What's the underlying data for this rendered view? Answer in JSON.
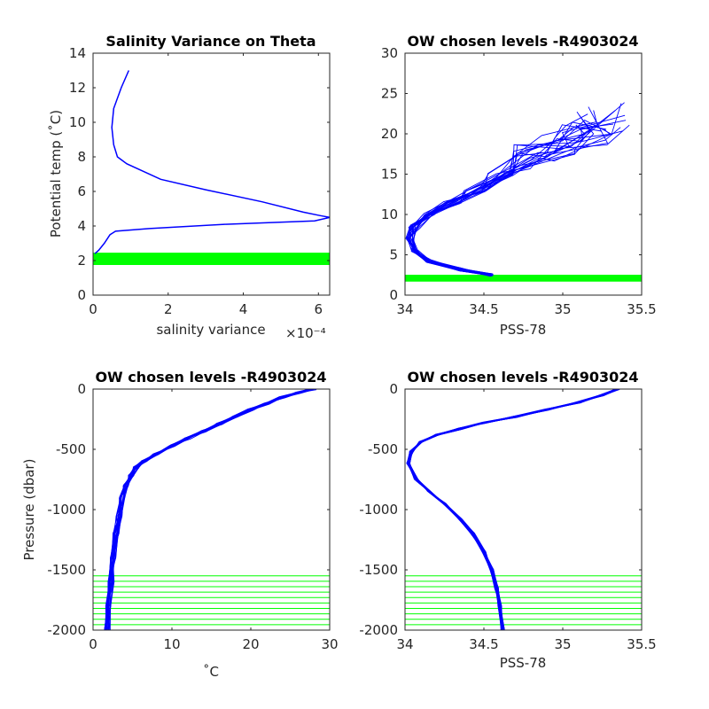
{
  "figure": {
    "panels": [
      {
        "title": "Salinity Variance on Theta",
        "xlabel": "salinity variance",
        "xexponent": "×10⁻⁴",
        "ylabel": "Potential temp (˚C)",
        "xlim": [
          0,
          6.3
        ],
        "ylim": [
          0,
          14
        ],
        "xticks": [
          0,
          2,
          4,
          6
        ],
        "yticks": [
          0,
          2,
          4,
          6,
          8,
          10,
          12,
          14
        ]
      },
      {
        "title": "OW chosen levels -R4903024",
        "xlabel": "PSS-78",
        "ylabel": "",
        "xlim": [
          34,
          35.5
        ],
        "ylim": [
          0,
          30
        ],
        "xticks": [
          34,
          34.5,
          35,
          35.5
        ],
        "yticks": [
          0,
          5,
          10,
          15,
          20,
          25,
          30
        ]
      },
      {
        "title": "OW chosen levels -R4903024",
        "xlabel": "˚C",
        "ylabel": "Pressure (dbar)",
        "xlim": [
          0,
          30
        ],
        "ylim": [
          -2000,
          0
        ],
        "xticks": [
          0,
          10,
          20,
          30
        ],
        "yticks": [
          -2000,
          -1500,
          -1000,
          -500,
          0
        ]
      },
      {
        "title": "OW chosen levels -R4903024",
        "xlabel": "PSS-78",
        "ylabel": "",
        "xlim": [
          34,
          35.5
        ],
        "ylim": [
          -2000,
          0
        ],
        "xticks": [
          34,
          34.5,
          35,
          35.5
        ],
        "yticks": [
          -2000,
          -1500,
          -1000,
          -500,
          0
        ]
      }
    ]
  },
  "chart_data": [
    {
      "type": "line",
      "title": "Salinity Variance on Theta",
      "xlabel": "salinity variance (×10⁻⁴)",
      "ylabel": "Potential temp (˚C)",
      "xlim": [
        0,
        6.3
      ],
      "ylim": [
        0,
        14
      ],
      "series": [
        {
          "color": "#0000ff",
          "x": [
            0.95,
            0.75,
            0.55,
            0.5,
            0.55,
            0.65,
            0.9,
            1.8,
            3.0,
            4.5,
            5.6,
            6.05,
            6.3,
            5.9,
            3.5,
            1.5,
            0.6,
            0.45,
            0.3,
            0.15,
            0.05
          ],
          "y": [
            13.0,
            12.0,
            10.8,
            9.7,
            8.7,
            8.0,
            7.6,
            6.7,
            6.1,
            5.4,
            4.8,
            4.6,
            4.5,
            4.3,
            4.1,
            3.85,
            3.7,
            3.5,
            3.0,
            2.6,
            2.4
          ]
        }
      ],
      "horizontal_levels": {
        "color": "#00ff00",
        "y": [
          1.8,
          1.9,
          2.0,
          2.05,
          2.1,
          2.2,
          2.3,
          2.35,
          2.4
        ]
      }
    },
    {
      "type": "line",
      "title": "OW chosen levels -R4903024",
      "xlabel": "PSS-78",
      "xlim": [
        34,
        35.5
      ],
      "ylim": [
        0,
        30
      ],
      "series": [
        {
          "color": "#0000ff",
          "x": [
            34.55,
            34.35,
            34.15,
            34.06,
            34.03,
            34.06,
            34.15,
            34.3,
            34.45,
            34.6,
            34.8,
            35.0,
            35.15,
            35.25
          ],
          "y": [
            2.5,
            3.2,
            4.2,
            5.5,
            7.0,
            8.5,
            10.0,
            11.5,
            13.0,
            15.0,
            17.0,
            18.5,
            20.0,
            22.0
          ]
        }
      ],
      "horizontal_levels": {
        "color": "#00ff00",
        "y": [
          1.8,
          1.9,
          2.0,
          2.1,
          2.2,
          2.3,
          2.4
        ]
      }
    },
    {
      "type": "line",
      "title": "OW chosen levels -R4903024",
      "xlabel": "˚C",
      "ylabel": "Pressure (dbar)",
      "xlim": [
        0,
        30
      ],
      "ylim": [
        -2000,
        0
      ],
      "series": [
        {
          "color": "#0000ff",
          "x": [
            1.8,
            2.0,
            2.3,
            2.6,
            2.9,
            3.3,
            3.7,
            4.2,
            4.8,
            5.5,
            6.5,
            8.0,
            10.0,
            12.0,
            14.0,
            16.0,
            18.0,
            20.0,
            22.0,
            24.0,
            26.0,
            28.0
          ],
          "y": [
            -2000,
            -1800,
            -1600,
            -1400,
            -1200,
            -1050,
            -900,
            -800,
            -720,
            -650,
            -600,
            -540,
            -470,
            -410,
            -350,
            -290,
            -230,
            -170,
            -120,
            -70,
            -30,
            0
          ]
        }
      ],
      "horizontal_levels": {
        "color": "#00ff00",
        "y": [
          -1550,
          -1595,
          -1640,
          -1685,
          -1730,
          -1775,
          -1820,
          -1865,
          -1910,
          -1955,
          -2000
        ]
      }
    },
    {
      "type": "line",
      "title": "OW chosen levels -R4903024",
      "xlabel": "PSS-78",
      "xlim": [
        34,
        35.5
      ],
      "ylim": [
        -2000,
        0
      ],
      "series": [
        {
          "color": "#0000ff",
          "x": [
            34.62,
            34.6,
            34.58,
            34.55,
            34.5,
            34.43,
            34.35,
            34.25,
            34.15,
            34.07,
            34.02,
            34.04,
            34.1,
            34.2,
            34.35,
            34.5,
            34.7,
            34.9,
            35.1,
            35.25,
            35.35
          ],
          "y": [
            -2000,
            -1800,
            -1650,
            -1500,
            -1350,
            -1200,
            -1080,
            -950,
            -850,
            -750,
            -620,
            -520,
            -440,
            -380,
            -330,
            -280,
            -230,
            -170,
            -110,
            -50,
            0
          ]
        }
      ],
      "horizontal_levels": {
        "color": "#00ff00",
        "y": [
          -1550,
          -1595,
          -1640,
          -1685,
          -1730,
          -1775,
          -1820,
          -1865,
          -1910,
          -1955,
          -2000
        ]
      }
    }
  ]
}
